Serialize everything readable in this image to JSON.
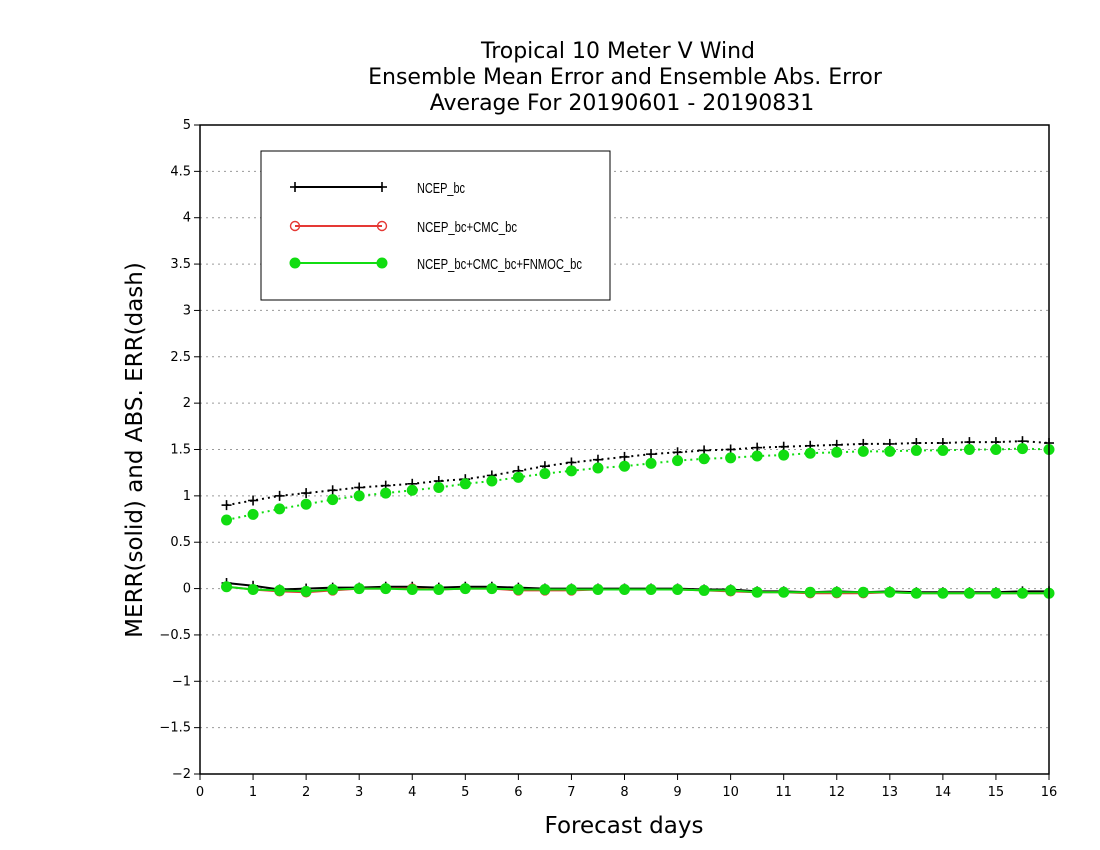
{
  "chart_data": {
    "type": "line",
    "title_lines": [
      "Tropical 10 Meter V Wind",
      "Ensemble Mean Error and Ensemble Abs. Error",
      "Average For 20190601 - 20190831"
    ],
    "xlabel": "Forecast days",
    "ylabel": "MERR(solid) and ABS. ERR(dash)",
    "xlim": [
      0,
      16
    ],
    "ylim": [
      -2,
      5
    ],
    "x_ticks": [
      0,
      1,
      2,
      3,
      4,
      5,
      6,
      7,
      8,
      9,
      10,
      11,
      12,
      13,
      14,
      15,
      16
    ],
    "y_ticks": [
      -2,
      -1.5,
      -1,
      -0.5,
      0,
      0.5,
      1,
      1.5,
      2,
      2.5,
      3,
      3.5,
      4,
      4.5,
      5
    ],
    "grid": "horizontal dotted",
    "legend_position": "top-left",
    "x": [
      0.5,
      1,
      1.5,
      2,
      2.5,
      3,
      3.5,
      4,
      4.5,
      5,
      5.5,
      6,
      6.5,
      7,
      7.5,
      8,
      8.5,
      9,
      9.5,
      10,
      10.5,
      11,
      11.5,
      12,
      12.5,
      13,
      13.5,
      14,
      14.5,
      15,
      15.5,
      16
    ],
    "series": [
      {
        "name": "NCEP_bc",
        "color": "#000000",
        "marker": "plus",
        "mean_error": [
          0.06,
          0.03,
          -0.01,
          0.0,
          0.01,
          0.01,
          0.02,
          0.02,
          0.01,
          0.02,
          0.02,
          0.01,
          0.0,
          0.0,
          0.0,
          0.0,
          0.0,
          0.0,
          -0.01,
          -0.01,
          -0.03,
          -0.03,
          -0.04,
          -0.03,
          -0.04,
          -0.03,
          -0.04,
          -0.04,
          -0.04,
          -0.04,
          -0.03,
          -0.03
        ],
        "abs_error": [
          0.9,
          0.95,
          1.0,
          1.03,
          1.06,
          1.09,
          1.11,
          1.13,
          1.16,
          1.18,
          1.22,
          1.27,
          1.32,
          1.36,
          1.39,
          1.42,
          1.45,
          1.47,
          1.49,
          1.5,
          1.52,
          1.53,
          1.54,
          1.55,
          1.56,
          1.56,
          1.57,
          1.57,
          1.58,
          1.58,
          1.59,
          1.57
        ]
      },
      {
        "name": "NCEP_bc+CMC_bc",
        "color": "#e53935",
        "marker": "circle-open",
        "mean_error": [
          0.02,
          -0.01,
          -0.03,
          -0.04,
          -0.02,
          0.0,
          0.0,
          0.0,
          -0.01,
          0.0,
          0.0,
          -0.02,
          -0.02,
          -0.02,
          -0.01,
          -0.01,
          -0.01,
          -0.01,
          -0.02,
          -0.03,
          -0.04,
          -0.04,
          -0.05,
          -0.05,
          -0.05,
          -0.04,
          -0.05,
          -0.05,
          -0.05,
          -0.05,
          -0.05,
          -0.05
        ]
      },
      {
        "name": "NCEP_bc+CMC_bc+FNMOC_bc",
        "color": "#11dd11",
        "marker": "circle-filled",
        "mean_error": [
          0.02,
          -0.01,
          -0.02,
          -0.03,
          -0.01,
          0.0,
          0.0,
          -0.01,
          -0.01,
          0.0,
          0.0,
          -0.01,
          -0.01,
          -0.01,
          -0.01,
          -0.01,
          -0.01,
          -0.01,
          -0.02,
          -0.02,
          -0.04,
          -0.04,
          -0.04,
          -0.04,
          -0.04,
          -0.04,
          -0.05,
          -0.05,
          -0.05,
          -0.05,
          -0.05,
          -0.05
        ],
        "abs_error": [
          0.74,
          0.8,
          0.86,
          0.91,
          0.96,
          1.0,
          1.03,
          1.06,
          1.09,
          1.13,
          1.16,
          1.2,
          1.24,
          1.27,
          1.3,
          1.32,
          1.35,
          1.38,
          1.4,
          1.41,
          1.43,
          1.44,
          1.46,
          1.47,
          1.48,
          1.48,
          1.49,
          1.49,
          1.5,
          1.5,
          1.51,
          1.5
        ]
      }
    ]
  }
}
